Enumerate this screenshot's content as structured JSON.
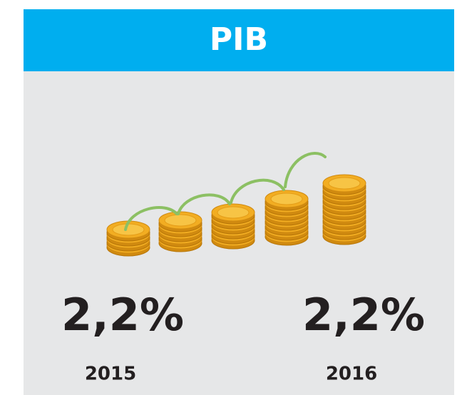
{
  "header": {
    "title": "PIB"
  },
  "items": [
    {
      "value": "2,2%",
      "year": "2015"
    },
    {
      "value": "2,2%",
      "year": "2016"
    }
  ]
}
